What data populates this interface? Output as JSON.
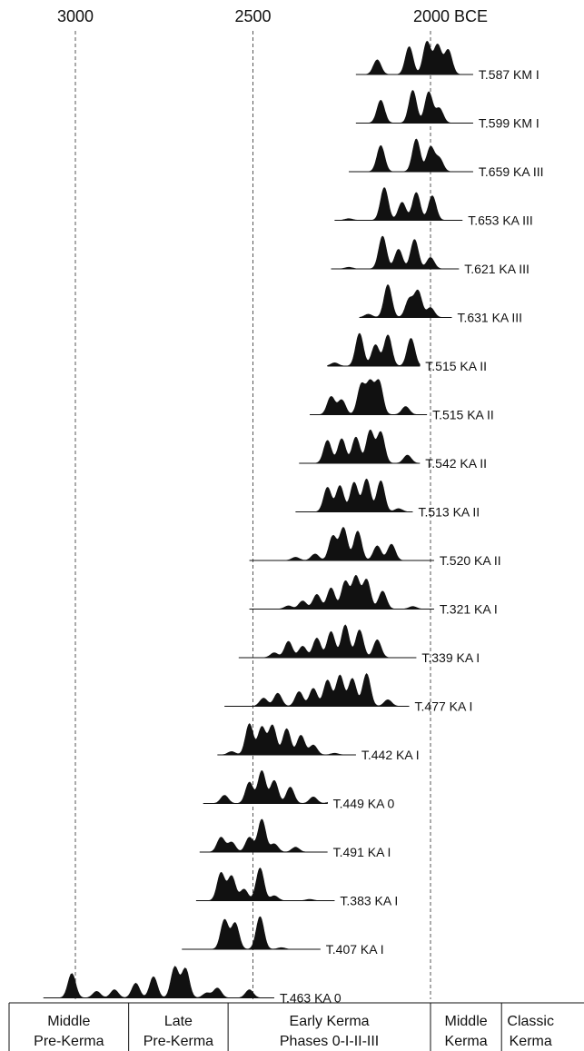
{
  "chart_data": {
    "type": "area",
    "title": "",
    "xlabel": "",
    "ylabel": "",
    "x_axis": {
      "direction": "reversed",
      "unit": "BCE",
      "xlim": [
        3100,
        1700
      ],
      "ticks": [
        {
          "value": 3000,
          "label": "3000"
        },
        {
          "value": 2500,
          "label": "2500"
        },
        {
          "value": 2000,
          "label": "2000 BCE"
        }
      ]
    },
    "reference_lines": [
      3000,
      2500,
      2000
    ],
    "series": [
      {
        "name": "T.587 KM I",
        "range": [
          2210,
          1880
        ],
        "peaks": [
          [
            2150,
            0.45
          ],
          [
            2060,
            0.85
          ],
          [
            2010,
            1.0
          ],
          [
            1980,
            0.9
          ],
          [
            1950,
            0.75
          ]
        ]
      },
      {
        "name": "T.599 KM I",
        "range": [
          2210,
          1880
        ],
        "peaks": [
          [
            2140,
            0.7
          ],
          [
            2050,
            1.0
          ],
          [
            2005,
            0.95
          ],
          [
            1975,
            0.45
          ]
        ]
      },
      {
        "name": "T.659 KA III",
        "range": [
          2230,
          1880
        ],
        "peaks": [
          [
            2140,
            0.8
          ],
          [
            2040,
            1.0
          ],
          [
            2000,
            0.75
          ],
          [
            1975,
            0.4
          ]
        ]
      },
      {
        "name": "T.653 KA III",
        "range": [
          2270,
          1910
        ],
        "peaks": [
          [
            2130,
            1.0
          ],
          [
            2080,
            0.55
          ],
          [
            2040,
            0.85
          ],
          [
            1995,
            0.75
          ],
          [
            2230,
            0.05
          ]
        ]
      },
      {
        "name": "T.621 KA III",
        "range": [
          2280,
          1920
        ],
        "peaks": [
          [
            2135,
            1.0
          ],
          [
            2090,
            0.6
          ],
          [
            2045,
            0.9
          ],
          [
            2000,
            0.35
          ],
          [
            2230,
            0.05
          ]
        ]
      },
      {
        "name": "T.631 KA III",
        "range": [
          2200,
          1940
        ],
        "peaks": [
          [
            2120,
            1.0
          ],
          [
            2060,
            0.55
          ],
          [
            2035,
            0.8
          ],
          [
            2000,
            0.3
          ],
          [
            2175,
            0.1
          ]
        ]
      },
      {
        "name": "T.515 KA II",
        "range": [
          2290,
          2030
        ],
        "peaks": [
          [
            2200,
            1.0
          ],
          [
            2155,
            0.65
          ],
          [
            2120,
            0.95
          ],
          [
            2055,
            0.85
          ],
          [
            2270,
            0.1
          ]
        ]
      },
      {
        "name": "T.515 KA II",
        "range": [
          2340,
          2010
        ],
        "peaks": [
          [
            2280,
            0.55
          ],
          [
            2250,
            0.45
          ],
          [
            2195,
            0.9
          ],
          [
            2170,
            0.95
          ],
          [
            2145,
            1.0
          ],
          [
            2070,
            0.25
          ]
        ]
      },
      {
        "name": "T.542 KA II",
        "range": [
          2370,
          2030
        ],
        "peaks": [
          [
            2290,
            0.7
          ],
          [
            2250,
            0.75
          ],
          [
            2210,
            0.8
          ],
          [
            2170,
            1.0
          ],
          [
            2140,
            0.95
          ],
          [
            2065,
            0.25
          ]
        ]
      },
      {
        "name": "T.513 KA II",
        "range": [
          2380,
          2050
        ],
        "peaks": [
          [
            2290,
            0.75
          ],
          [
            2255,
            0.8
          ],
          [
            2215,
            0.9
          ],
          [
            2180,
            1.0
          ],
          [
            2140,
            0.95
          ],
          [
            2090,
            0.1
          ]
        ]
      },
      {
        "name": "T.520 KA II",
        "range": [
          2510,
          1990
        ],
        "peaks": [
          [
            2380,
            0.1
          ],
          [
            2325,
            0.2
          ],
          [
            2275,
            0.75
          ],
          [
            2245,
            1.0
          ],
          [
            2205,
            0.9
          ],
          [
            2150,
            0.45
          ],
          [
            2110,
            0.5
          ]
        ]
      },
      {
        "name": "T.321 KA I",
        "range": [
          2510,
          1990
        ],
        "peaks": [
          [
            2400,
            0.1
          ],
          [
            2360,
            0.25
          ],
          [
            2320,
            0.45
          ],
          [
            2280,
            0.65
          ],
          [
            2240,
            0.85
          ],
          [
            2210,
            1.0
          ],
          [
            2180,
            0.9
          ],
          [
            2135,
            0.55
          ],
          [
            2050,
            0.08
          ]
        ]
      },
      {
        "name": "T.339 KA I",
        "range": [
          2540,
          2040
        ],
        "peaks": [
          [
            2440,
            0.15
          ],
          [
            2400,
            0.5
          ],
          [
            2360,
            0.35
          ],
          [
            2320,
            0.6
          ],
          [
            2280,
            0.8
          ],
          [
            2240,
            1.0
          ],
          [
            2200,
            0.85
          ],
          [
            2150,
            0.55
          ]
        ]
      },
      {
        "name": "T.477 KA I",
        "range": [
          2580,
          2060
        ],
        "peaks": [
          [
            2470,
            0.25
          ],
          [
            2430,
            0.4
          ],
          [
            2370,
            0.45
          ],
          [
            2330,
            0.55
          ],
          [
            2290,
            0.8
          ],
          [
            2255,
            0.95
          ],
          [
            2220,
            0.85
          ],
          [
            2180,
            1.0
          ],
          [
            2120,
            0.2
          ]
        ]
      },
      {
        "name": "T.442 KA I",
        "range": [
          2600,
          2210
        ],
        "peaks": [
          [
            2560,
            0.1
          ],
          [
            2510,
            0.95
          ],
          [
            2475,
            0.85
          ],
          [
            2445,
            0.9
          ],
          [
            2405,
            0.8
          ],
          [
            2365,
            0.6
          ],
          [
            2330,
            0.3
          ],
          [
            2270,
            0.05
          ]
        ]
      },
      {
        "name": "T.449 KA 0",
        "range": [
          2640,
          2290
        ],
        "peaks": [
          [
            2580,
            0.25
          ],
          [
            2510,
            0.65
          ],
          [
            2475,
            1.0
          ],
          [
            2440,
            0.7
          ],
          [
            2395,
            0.5
          ],
          [
            2330,
            0.2
          ],
          [
            2280,
            0.05
          ]
        ]
      },
      {
        "name": "T.491 KA I",
        "range": [
          2650,
          2290
        ],
        "peaks": [
          [
            2590,
            0.45
          ],
          [
            2560,
            0.3
          ],
          [
            2510,
            0.45
          ],
          [
            2475,
            1.0
          ],
          [
            2440,
            0.25
          ],
          [
            2380,
            0.15
          ]
        ]
      },
      {
        "name": "T.383 KA I",
        "range": [
          2660,
          2270
        ],
        "peaks": [
          [
            2590,
            0.85
          ],
          [
            2560,
            0.75
          ],
          [
            2525,
            0.35
          ],
          [
            2480,
            1.0
          ],
          [
            2440,
            0.15
          ],
          [
            2340,
            0.04
          ]
        ]
      },
      {
        "name": "T.407 KA I",
        "range": [
          2700,
          2310
        ],
        "peaks": [
          [
            2580,
            0.9
          ],
          [
            2550,
            0.8
          ],
          [
            2480,
            1.0
          ],
          [
            2420,
            0.05
          ]
        ]
      },
      {
        "name": "T.463 KA 0",
        "range": [
          3090,
          2440
        ],
        "peaks": [
          [
            3010,
            0.75
          ],
          [
            2940,
            0.2
          ],
          [
            2890,
            0.25
          ],
          [
            2830,
            0.45
          ],
          [
            2780,
            0.65
          ],
          [
            2720,
            0.95
          ],
          [
            2690,
            0.9
          ],
          [
            2630,
            0.15
          ],
          [
            2600,
            0.3
          ],
          [
            2510,
            0.25
          ]
        ]
      }
    ],
    "periods": [
      {
        "line1": "Middle",
        "line2": "Pre-Kerma",
        "from": 3200,
        "to": 2850
      },
      {
        "line1": "Late",
        "line2": "Pre-Kerma",
        "from": 2850,
        "to": 2570
      },
      {
        "line1": "Early Kerma",
        "line2": "Phases 0-I-II-III",
        "from": 2570,
        "to": 2000
      },
      {
        "line1": "Middle",
        "line2": "Kerma",
        "from": 2000,
        "to": 1800
      },
      {
        "line1": "Classic",
        "line2": "Kerma",
        "from": 1800,
        "to": 1650
      }
    ],
    "colors": {
      "fill": "#111111",
      "line": "#111111",
      "ref_line": "#555555"
    }
  }
}
